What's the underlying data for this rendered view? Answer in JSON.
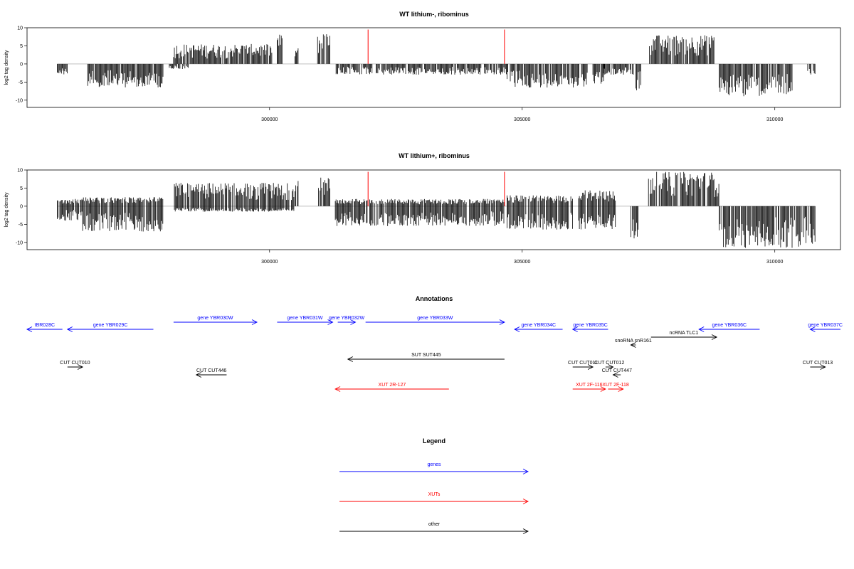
{
  "chart_data": [
    {
      "type": "bar",
      "title": "WT lithium-, ribominus",
      "ylabel": "log2 tag density",
      "xlabel": "",
      "xlim": [
        295200,
        311300
      ],
      "ylim": [
        -12,
        10
      ],
      "yticks": [
        10,
        5,
        0,
        -5,
        -10
      ],
      "xticks": [
        300000,
        305000,
        310000
      ],
      "markers_color": "#ff0000",
      "markers": [
        {
          "x": 301950,
          "y": 9.5
        },
        {
          "x": 304650,
          "y": 9.5
        }
      ],
      "segments": [
        {
          "from": 295800,
          "to": 296000,
          "lo": -3.0,
          "hi": 0.0
        },
        {
          "from": 296400,
          "to": 297900,
          "lo": -6.5,
          "hi": 0.0
        },
        {
          "from": 298000,
          "to": 298400,
          "lo": -1.5,
          "hi": 0.0
        },
        {
          "from": 298100,
          "to": 300050,
          "lo": 0.0,
          "hi": 5.5
        },
        {
          "from": 300150,
          "to": 300250,
          "lo": 0.0,
          "hi": 8.3
        },
        {
          "from": 300500,
          "to": 300580,
          "lo": 0.0,
          "hi": 4.5
        },
        {
          "from": 300950,
          "to": 301200,
          "lo": 0.0,
          "hi": 8.5
        },
        {
          "from": 301300,
          "to": 304700,
          "lo": -3.0,
          "hi": 0.0
        },
        {
          "from": 304700,
          "to": 306300,
          "lo": -6.5,
          "hi": 0.0
        },
        {
          "from": 306400,
          "to": 306650,
          "lo": -5.5,
          "hi": 0.0
        },
        {
          "from": 306600,
          "to": 307200,
          "lo": -3.0,
          "hi": 0.0
        },
        {
          "from": 307250,
          "to": 307350,
          "lo": -8.0,
          "hi": 0.0
        },
        {
          "from": 307500,
          "to": 308800,
          "lo": 0.0,
          "hi": 8.0
        },
        {
          "from": 308900,
          "to": 310350,
          "lo": -9.0,
          "hi": 0.0
        },
        {
          "from": 310650,
          "to": 310800,
          "lo": -4.0,
          "hi": 0.0
        }
      ]
    },
    {
      "type": "bar",
      "title": "WT lithium+, ribominus",
      "ylabel": "log2 tag density",
      "xlabel": "",
      "xlim": [
        295200,
        311300
      ],
      "ylim": [
        -12,
        10
      ],
      "yticks": [
        10,
        5,
        0,
        -5,
        -10
      ],
      "xticks": [
        300000,
        305000,
        310000
      ],
      "markers_color": "#ff0000",
      "markers": [
        {
          "x": 301950,
          "y": 9.5
        },
        {
          "x": 304650,
          "y": 9.5
        }
      ],
      "segments": [
        {
          "from": 295800,
          "to": 296300,
          "lo": -4.0,
          "hi": 2.0
        },
        {
          "from": 296300,
          "to": 297900,
          "lo": -7.0,
          "hi": 2.5
        },
        {
          "from": 298100,
          "to": 300500,
          "lo": -1.5,
          "hi": 6.5
        },
        {
          "from": 300500,
          "to": 300580,
          "lo": 0.0,
          "hi": 7.5
        },
        {
          "from": 300950,
          "to": 301200,
          "lo": 0.0,
          "hi": 8.0
        },
        {
          "from": 301300,
          "to": 304650,
          "lo": -5.5,
          "hi": 2.0
        },
        {
          "from": 304700,
          "to": 306000,
          "lo": -6.5,
          "hi": 3.0
        },
        {
          "from": 306100,
          "to": 306850,
          "lo": -6.5,
          "hi": 4.5
        },
        {
          "from": 307150,
          "to": 307300,
          "lo": -9.0,
          "hi": 0.0
        },
        {
          "from": 307500,
          "to": 308900,
          "lo": 0.0,
          "hi": 9.5
        },
        {
          "from": 308900,
          "to": 310800,
          "lo": -11.5,
          "hi": 0.0
        }
      ]
    }
  ],
  "annotations": {
    "title": "Annotations",
    "genes_color": "#0000ff",
    "xuts_color": "#ff0000",
    "other_color": "#000000",
    "features": [
      {
        "label": "tBR028C",
        "from": 295900,
        "to": 295200,
        "row": 0,
        "kind": "gene"
      },
      {
        "label": "gene YBR029C",
        "from": 297700,
        "to": 296000,
        "row": 0,
        "kind": "gene"
      },
      {
        "label": "gene YBR030W",
        "from": 298100,
        "to": 299750,
        "row": -1,
        "kind": "gene"
      },
      {
        "label": "gene YBR031W",
        "from": 300150,
        "to": 301250,
        "row": -1,
        "kind": "gene"
      },
      {
        "label": "gene YBR032W",
        "from": 301350,
        "to": 301700,
        "row": -1,
        "kind": "gene"
      },
      {
        "label": "gene YBR033W",
        "from": 301900,
        "to": 304650,
        "row": -1,
        "kind": "gene"
      },
      {
        "label": "gene YBR034C",
        "from": 305800,
        "to": 304850,
        "row": 0,
        "kind": "gene"
      },
      {
        "label": "gene YBR035C",
        "from": 306700,
        "to": 306000,
        "row": 0,
        "kind": "gene"
      },
      {
        "label": "gene YBR036C",
        "from": 309700,
        "to": 308500,
        "row": 0,
        "kind": "gene"
      },
      {
        "label": "gene YBR037C",
        "from": 311300,
        "to": 310700,
        "row": 0,
        "kind": "gene"
      },
      {
        "label": "snoRNA snR161",
        "from": 307250,
        "to": 307150,
        "row": 1,
        "kind": "other"
      },
      {
        "label": "ncRNA TLC1",
        "from": 307550,
        "to": 308850,
        "row": 0.6,
        "kind": "other"
      },
      {
        "label": "SUT SUT445",
        "from": 304650,
        "to": 301550,
        "row": 2,
        "kind": "other"
      },
      {
        "label": "CUT CUT010",
        "from": 296000,
        "to": 296300,
        "row": 3,
        "kind": "other"
      },
      {
        "label": "CUT CUT446",
        "from": 299150,
        "to": 298550,
        "row": 4,
        "kind": "other"
      },
      {
        "label": "CUT CUT011",
        "from": 306000,
        "to": 306400,
        "row": 3,
        "kind": "other"
      },
      {
        "label": "CUT CUT012",
        "from": 306650,
        "to": 306800,
        "row": 3,
        "kind": "other"
      },
      {
        "label": "CUT CUT447",
        "from": 306950,
        "to": 306800,
        "row": 4,
        "kind": "other"
      },
      {
        "label": "CUT CUT013",
        "from": 310700,
        "to": 311000,
        "row": 3,
        "kind": "other"
      },
      {
        "label": "XUT 2R-127",
        "from": 303550,
        "to": 301300,
        "row": 5,
        "kind": "xut"
      },
      {
        "label": "XUT 2F-116",
        "from": 306000,
        "to": 306650,
        "row": 5,
        "kind": "xut"
      },
      {
        "label": "XUT 2F-118",
        "from": 306700,
        "to": 307000,
        "row": 5,
        "kind": "xut"
      }
    ]
  },
  "legend": {
    "title": "Legend",
    "items": [
      {
        "label": "genes",
        "color": "#0000ff"
      },
      {
        "label": "XUTs",
        "color": "#ff0000"
      },
      {
        "label": "other",
        "color": "#000000"
      }
    ]
  }
}
